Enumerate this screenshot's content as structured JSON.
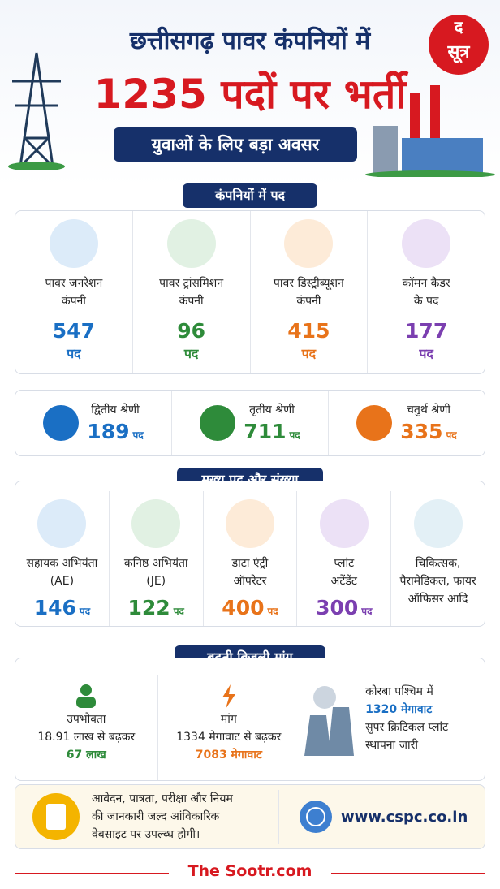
{
  "header": {
    "title_line1": "छत्तीसगढ़ पावर कंपनियों में",
    "title_line2": "1235 पदों पर भर्ती",
    "subtitle": "युवाओं के लिए बड़ा अवसर",
    "logo_top": "द",
    "logo_bottom": "सूत्र"
  },
  "companies": {
    "heading": "कंपनियों में पद",
    "items": [
      {
        "name": [
          "पावर जनरेशन",
          "कंपनी"
        ],
        "count": 547,
        "unit": "पद"
      },
      {
        "name": [
          "पावर ट्रांसमिशन",
          "कंपनी"
        ],
        "count": 96,
        "unit": "पद"
      },
      {
        "name": [
          "पावर डिस्ट्रीब्यूशन",
          "कंपनी"
        ],
        "count": 415,
        "unit": "पद"
      },
      {
        "name": [
          "कॉमन कैडर",
          "के पद"
        ],
        "count": 177,
        "unit": "पद"
      }
    ]
  },
  "grades": {
    "items": [
      {
        "name": "द्वितीय श्रेणी",
        "count": 189,
        "unit": "पद"
      },
      {
        "name": "तृतीय श्रेणी",
        "count": 711,
        "unit": "पद"
      },
      {
        "name": "चतुर्थ श्रेणी",
        "count": 335,
        "unit": "पद"
      }
    ]
  },
  "posts": {
    "heading": "मुख्य पद और संख्या",
    "items": [
      {
        "name": [
          "सहायक अभियंता",
          "(AE)"
        ],
        "count": 146,
        "unit": "पद"
      },
      {
        "name": [
          "कनिष्ठ अभियंता",
          "(JE)"
        ],
        "count": 122,
        "unit": "पद"
      },
      {
        "name": [
          "डाटा एंट्री",
          "ऑपरेटर"
        ],
        "count": 400,
        "unit": "पद"
      },
      {
        "name": [
          "प्लांट",
          "अटेंडेंट"
        ],
        "count": 300,
        "unit": "पद"
      },
      {
        "name": [
          "चिकित्सक,",
          "पैरामेडिकल, फायर",
          "ऑफिसर आदि"
        ]
      }
    ]
  },
  "demand": {
    "heading": "बढ़ती बिजली मांग",
    "consumers": {
      "label": "उपभोक्ता",
      "from": "18.91 लाख से बढ़कर",
      "to": "67 लाख"
    },
    "load": {
      "label": "मांग",
      "from": "1334 मेगावाट से बढ़कर",
      "to": "7083 मेगावाट"
    },
    "korba": {
      "line1": "कोरबा पश्चिम में",
      "capacity": "1320 मेगावाट",
      "line3": "सुपर क्रिटिकल प्लांट",
      "line4": "स्थापना जारी"
    }
  },
  "notice": {
    "lines": [
      "आवेदन, पात्रता, परीक्षा और नियम",
      "की जानकारी जल्द आंविकारिक",
      "वेबसाइट पर उपल्ब्ध होगी।"
    ],
    "website": "www.cspc.co.in"
  },
  "footer": {
    "brand": "The Sootr.com"
  }
}
